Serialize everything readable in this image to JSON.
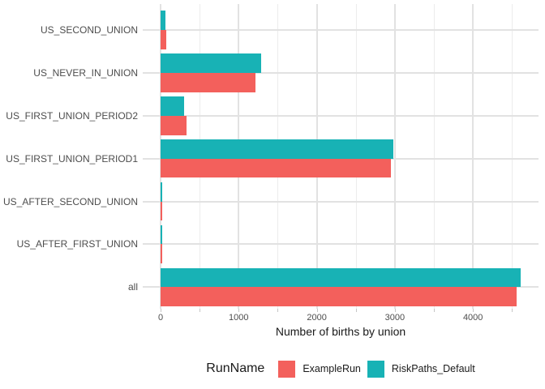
{
  "chart_data": {
    "type": "bar",
    "orientation": "horizontal",
    "title": "",
    "xlabel": "Number of births by union",
    "ylabel": "",
    "categories_top_to_bottom": [
      "US_SECOND_UNION",
      "US_NEVER_IN_UNION",
      "US_FIRST_UNION_PERIOD2",
      "US_FIRST_UNION_PERIOD1",
      "US_AFTER_SECOND_UNION",
      "US_AFTER_FIRST_UNION",
      "all"
    ],
    "series": [
      {
        "name": "ExampleRun",
        "color": "#F3605C",
        "values": [
          75,
          1210,
          330,
          2950,
          12,
          15,
          4560
        ]
      },
      {
        "name": "RiskPaths_Default",
        "color": "#18B2B5",
        "values": [
          60,
          1290,
          300,
          2980,
          15,
          18,
          4610
        ]
      }
    ],
    "bar_order_within_group_top_to_bottom": [
      "RiskPaths_Default",
      "ExampleRun"
    ],
    "x_axis": {
      "tick_values": [
        0,
        1000,
        2000,
        3000,
        4000
      ],
      "tick_labels": [
        "0",
        "1000",
        "2000",
        "3000",
        "4000"
      ],
      "minor_step": 500,
      "last_minor_tick": 4500,
      "xlim": [
        0,
        4850
      ]
    },
    "legend": {
      "title": "RunName",
      "position": "bottom"
    },
    "grid": "on",
    "style": {
      "grid_major": "#E2E2E2",
      "grid_minor": "#ECECEC",
      "tick_mark": "#C6C6C6",
      "axis_text_color": "#4D4D4D",
      "title_text_color": "#1A1A1A",
      "background": "#FFFFFF"
    }
  }
}
